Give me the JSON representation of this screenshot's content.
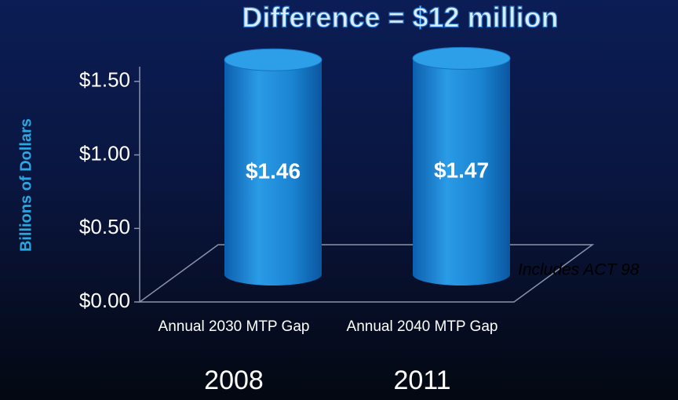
{
  "chart_data": {
    "type": "bar",
    "title": "Difference = $12 million",
    "y_label": "Billions of Dollars",
    "categories": [
      "Annual 2030 MTP Gap",
      "Annual 2040 MTP Gap"
    ],
    "sublabels": [
      "2008",
      "2011"
    ],
    "values": [
      1.46,
      1.47
    ],
    "value_labels": [
      "$1.46",
      "$1.47"
    ],
    "color": "#1a8ad8",
    "ylim": [
      0,
      1.6
    ],
    "yticks": [
      {
        "value": 0,
        "label": "$0.00"
      },
      {
        "value": 0.5,
        "label": "$0.50"
      },
      {
        "value": 1,
        "label": "$1.00"
      },
      {
        "value": 1.5,
        "label": "$1.50"
      }
    ],
    "annotations": [
      "Includes ACT 98"
    ]
  }
}
